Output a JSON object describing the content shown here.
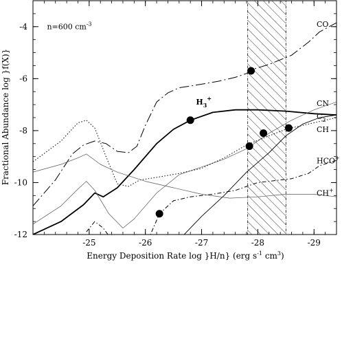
{
  "chart_data": {
    "type": "line",
    "title": "",
    "xlabel": "Energy Deposition Rate log }H/n} (erg s",
    "xlabel_sup": "-1",
    "xlabel_tail": " cm",
    "xlabel_sup2": "3",
    "xlabel_end": ")",
    "ylabel": "Fractional Abundance log }f(X)}",
    "xlim": [
      -24,
      -29.4
    ],
    "ylim": [
      -12,
      -3
    ],
    "x_ticks": [
      -25,
      -26,
      -27,
      -28,
      -29
    ],
    "x_tick_labels": [
      "-25",
      "-26",
      "-27",
      "-28",
      "-29"
    ],
    "y_ticks": [
      -12,
      -10,
      -8,
      -6,
      -4
    ],
    "y_tick_labels": [
      "-12",
      "-10",
      "-8",
      "-6",
      "-4"
    ],
    "annotation": {
      "text": "n=600 cm",
      "sup": "-3",
      "x": -24.25,
      "y": -4.1
    },
    "shaded_band": {
      "x_start": -27.82,
      "x_end": -28.5,
      "pattern": "diagonal-hatch"
    },
    "h3_label": {
      "text": "H",
      "sub": "3",
      "sup": "+",
      "x": -26.9,
      "y": -7.0
    },
    "series": [
      {
        "name": "CO",
        "label": "CO",
        "label_sub": "",
        "label_sup": "",
        "label_y": -3.9,
        "style": "longdash-dot",
        "width": 1.0,
        "color": "#000000",
        "points": [
          [
            -24,
            -10.9
          ],
          [
            -24.4,
            -9.9
          ],
          [
            -24.7,
            -8.9
          ],
          [
            -24.9,
            -8.55
          ],
          [
            -25.1,
            -8.4
          ],
          [
            -25.3,
            -8.5
          ],
          [
            -25.5,
            -8.8
          ],
          [
            -25.7,
            -8.85
          ],
          [
            -25.85,
            -8.6
          ],
          [
            -26.0,
            -7.8
          ],
          [
            -26.2,
            -6.9
          ],
          [
            -26.4,
            -6.55
          ],
          [
            -26.6,
            -6.35
          ],
          [
            -26.9,
            -6.25
          ],
          [
            -27.3,
            -6.1
          ],
          [
            -27.6,
            -5.95
          ],
          [
            -27.8,
            -5.8
          ],
          [
            -27.9,
            -5.65
          ],
          [
            -28.2,
            -5.45
          ],
          [
            -28.6,
            -5.1
          ],
          [
            -28.9,
            -4.6
          ],
          [
            -29.1,
            -4.2
          ],
          [
            -29.4,
            -3.85
          ]
        ]
      },
      {
        "name": "H3+",
        "label": "",
        "label_sub": "",
        "label_sup": "",
        "label_y": 0,
        "style": "solid",
        "width": 1.8,
        "color": "#000000",
        "points": [
          [
            -24,
            -12
          ],
          [
            -24.5,
            -11.5
          ],
          [
            -24.9,
            -10.85
          ],
          [
            -25.1,
            -10.4
          ],
          [
            -25.25,
            -10.55
          ],
          [
            -25.5,
            -10.2
          ],
          [
            -25.8,
            -9.5
          ],
          [
            -26.2,
            -8.5
          ],
          [
            -26.5,
            -7.95
          ],
          [
            -26.8,
            -7.6
          ],
          [
            -27.2,
            -7.3
          ],
          [
            -27.6,
            -7.2
          ],
          [
            -28.0,
            -7.2
          ],
          [
            -28.5,
            -7.25
          ],
          [
            -29.0,
            -7.35
          ],
          [
            -29.4,
            -7.4
          ]
        ]
      },
      {
        "name": "CN",
        "label": "CN",
        "label_sub": "",
        "label_sup": "",
        "label_y": -6.95,
        "style": "solid",
        "width": 0.7,
        "color": "#555555",
        "points": [
          [
            -24,
            -11.6
          ],
          [
            -24.5,
            -10.9
          ],
          [
            -24.8,
            -10.25
          ],
          [
            -24.95,
            -9.95
          ],
          [
            -25.1,
            -10.3
          ],
          [
            -25.35,
            -11.2
          ],
          [
            -25.6,
            -11.75
          ],
          [
            -25.8,
            -11.4
          ],
          [
            -26.2,
            -10.4
          ],
          [
            -26.6,
            -9.7
          ],
          [
            -27.0,
            -9.4
          ],
          [
            -27.4,
            -9.1
          ],
          [
            -27.8,
            -8.7
          ],
          [
            -28.2,
            -8.1
          ],
          [
            -28.6,
            -7.6
          ],
          [
            -29.0,
            -7.2
          ],
          [
            -29.4,
            -6.9
          ]
        ]
      },
      {
        "name": "C2",
        "label": "C",
        "label_sub": "2",
        "label_sup": "",
        "label_y": -7.45,
        "style": "solid",
        "width": 0.9,
        "color": "#000000",
        "points": [
          [
            -26.0,
            -13.5
          ],
          [
            -26.6,
            -12.2
          ],
          [
            -27.0,
            -11.3
          ],
          [
            -27.4,
            -10.5
          ],
          [
            -27.8,
            -9.6
          ],
          [
            -28.2,
            -8.85
          ],
          [
            -28.5,
            -8.2
          ],
          [
            -28.8,
            -7.75
          ],
          [
            -29.1,
            -7.5
          ],
          [
            -29.4,
            -7.4
          ]
        ]
      },
      {
        "name": "CH",
        "label": "CH",
        "label_sub": "",
        "label_sup": "",
        "label_y": -7.95,
        "style": "dotted",
        "width": 1.0,
        "color": "#000000",
        "points": [
          [
            -24,
            -9.2
          ],
          [
            -24.5,
            -8.4
          ],
          [
            -24.8,
            -7.7
          ],
          [
            -24.95,
            -7.6
          ],
          [
            -25.1,
            -7.9
          ],
          [
            -25.3,
            -9.0
          ],
          [
            -25.5,
            -10.05
          ],
          [
            -25.7,
            -10.15
          ],
          [
            -25.9,
            -9.9
          ],
          [
            -26.2,
            -9.8
          ],
          [
            -26.6,
            -9.65
          ],
          [
            -27.0,
            -9.45
          ],
          [
            -27.4,
            -9.05
          ],
          [
            -27.8,
            -8.55
          ],
          [
            -28.2,
            -8.2
          ],
          [
            -28.5,
            -7.95
          ],
          [
            -28.9,
            -7.75
          ],
          [
            -29.4,
            -7.5
          ]
        ]
      },
      {
        "name": "HCO+",
        "label": "HCO",
        "label_sub": "",
        "label_sup": "+",
        "label_y": -9.15,
        "style": "dash-dot",
        "width": 1.0,
        "color": "#000000",
        "points": [
          [
            -24.95,
            -11.9
          ],
          [
            -25.1,
            -11.5
          ],
          [
            -25.25,
            -11.75
          ],
          [
            -25.4,
            -12.2
          ],
          [
            -26.05,
            -12.2
          ],
          [
            -26.25,
            -11.2
          ],
          [
            -26.5,
            -10.7
          ],
          [
            -26.8,
            -10.55
          ],
          [
            -27.2,
            -10.45
          ],
          [
            -27.6,
            -10.3
          ],
          [
            -27.8,
            -10.15
          ],
          [
            -28.0,
            -10.0
          ],
          [
            -28.2,
            -9.95
          ],
          [
            -28.6,
            -9.85
          ],
          [
            -28.9,
            -9.65
          ],
          [
            -29.1,
            -9.35
          ],
          [
            -29.4,
            -9.15
          ]
        ]
      },
      {
        "name": "CH+",
        "label": "CH",
        "label_sub": "",
        "label_sup": "+",
        "label_y": -10.4,
        "style": "solid",
        "width": 0.7,
        "color": "#555555",
        "points": [
          [
            -24,
            -9.6
          ],
          [
            -24.5,
            -9.3
          ],
          [
            -24.8,
            -9.05
          ],
          [
            -24.95,
            -8.9
          ],
          [
            -25.2,
            -9.3
          ],
          [
            -25.5,
            -9.6
          ],
          [
            -26.0,
            -9.95
          ],
          [
            -26.5,
            -10.2
          ],
          [
            -27.0,
            -10.45
          ],
          [
            -27.5,
            -10.6
          ],
          [
            -28.0,
            -10.55
          ],
          [
            -28.5,
            -10.45
          ],
          [
            -29.0,
            -10.45
          ],
          [
            -29.4,
            -10.55
          ]
        ]
      }
    ],
    "markers": [
      {
        "x": -27.88,
        "y": -5.7
      },
      {
        "x": -26.8,
        "y": -7.6
      },
      {
        "x": -28.55,
        "y": -7.9
      },
      {
        "x": -28.1,
        "y": -8.1
      },
      {
        "x": -27.85,
        "y": -8.6
      },
      {
        "x": -26.25,
        "y": -11.2
      }
    ]
  }
}
